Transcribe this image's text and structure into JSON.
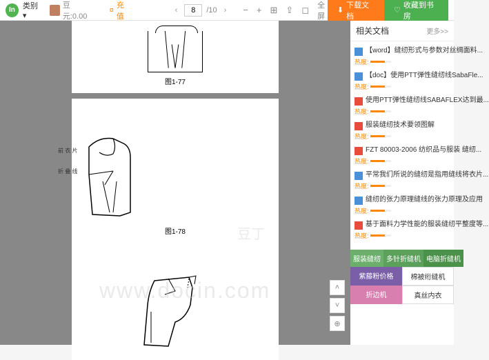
{
  "topbar": {
    "logo": "In",
    "category": "类别 ▾",
    "balance_label": "豆元:0.00",
    "coin_icon": "¤",
    "recharge": "充值",
    "page_current": "8",
    "page_total": "/10",
    "fullscreen": "全屏",
    "download": "下载文档",
    "favorite": "收藏到书房"
  },
  "doc": {
    "caption1": "图1-77",
    "caption2": "图1-78",
    "label_a": "前\n衣\n片",
    "label_b": "折\n叠\n线",
    "watermark_brand": "豆丁",
    "watermark_url": "www.docin.com"
  },
  "sidebar": {
    "header": "相关文档",
    "more": "更多>>",
    "items": [
      {
        "ico": "w",
        "title": "【word】缝纫形式与参数对丝绸面料...",
        "heat": "热度:"
      },
      {
        "ico": "w",
        "title": "【doc】使用PTT弹性缝纫线SabaFle...",
        "heat": "热度:"
      },
      {
        "ico": "p",
        "title": "使用PTT弹性缝纫线SABAFLEX达到最...",
        "heat": "热度:"
      },
      {
        "ico": "p",
        "title": "服装缝纫技术要领图解",
        "heat": "热度:"
      },
      {
        "ico": "p",
        "title": "FZT 80003-2006 纺织品与服装 缝纫...",
        "heat": "热度:"
      },
      {
        "ico": "w",
        "title": "平常我们所说的缝纫是指用缝线将衣片...",
        "heat": "热度:"
      },
      {
        "ico": "w",
        "title": "缝纫的张力原理缝线的张力原理及应用",
        "heat": "热度:"
      },
      {
        "ico": "p",
        "title": "基于面料力学性能的服装缝纫平整度等...",
        "heat": "热度:"
      }
    ],
    "tags": {
      "r1": [
        "服装缝纫",
        "多针折缝机",
        "电脑折缝机"
      ],
      "r2": [
        "紫藤粉价格",
        "棉被绗缝机"
      ],
      "r3": [
        "折边机",
        "真丝内衣"
      ]
    }
  },
  "colors": {
    "accent_orange": "#ff7a1a",
    "accent_green": "#4caf50",
    "bg_gray": "#888888"
  }
}
